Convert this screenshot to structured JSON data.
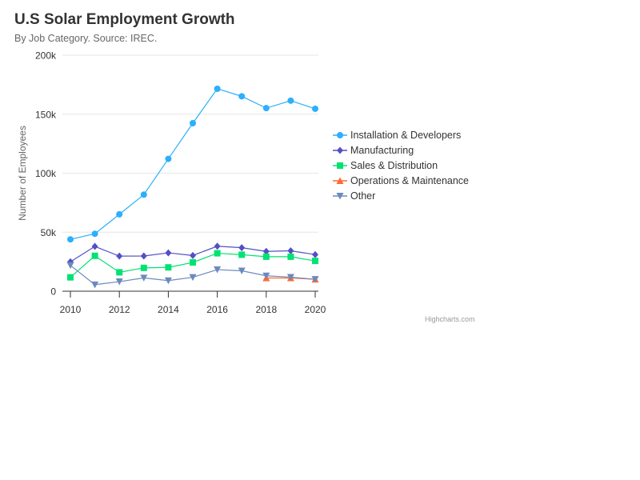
{
  "chart_data": {
    "type": "line",
    "title": "U.S Solar Employment Growth",
    "subtitle": "By Job Category. Source: IREC.",
    "ylabel": "Number of Employees",
    "xlabel": "",
    "x": [
      2010,
      2011,
      2012,
      2013,
      2014,
      2015,
      2016,
      2017,
      2018,
      2019,
      2020
    ],
    "xticks": [
      "2010",
      "2012",
      "2014",
      "2016",
      "2018",
      "2020"
    ],
    "xlim": [
      2010,
      2020
    ],
    "ylim": [
      0,
      200000
    ],
    "yticks": [
      "0",
      "50k",
      "100k",
      "150k",
      "200k"
    ],
    "grid": true,
    "legend_position": "right",
    "series": [
      {
        "name": "Installation & Developers",
        "color": "#2caffe",
        "marker": "circle",
        "values": [
          43934,
          48656,
          65165,
          81827,
          112143,
          142383,
          171533,
          165174,
          155157,
          161454,
          154610
        ]
      },
      {
        "name": "Manufacturing",
        "color": "#544fc5",
        "marker": "diamond",
        "values": [
          24916,
          37941,
          29742,
          29851,
          32490,
          30282,
          38121,
          36885,
          33726,
          34243,
          31050
        ]
      },
      {
        "name": "Sales & Distribution",
        "color": "#00e272",
        "marker": "square",
        "values": [
          11744,
          30000,
          16005,
          19771,
          20185,
          24377,
          32147,
          30912,
          29243,
          29213,
          25663
        ]
      },
      {
        "name": "Operations & Maintenance",
        "color": "#fe6a35",
        "marker": "triangle",
        "values": [
          null,
          null,
          null,
          null,
          null,
          null,
          null,
          null,
          11164,
          11218,
          10077
        ]
      },
      {
        "name": "Other",
        "color": "#6b8abc",
        "marker": "triangle-down",
        "values": [
          21908,
          5548,
          8105,
          11248,
          8989,
          11816,
          18274,
          17300,
          13053,
          11906,
          10073
        ]
      }
    ]
  },
  "credits": "Highcharts.com"
}
